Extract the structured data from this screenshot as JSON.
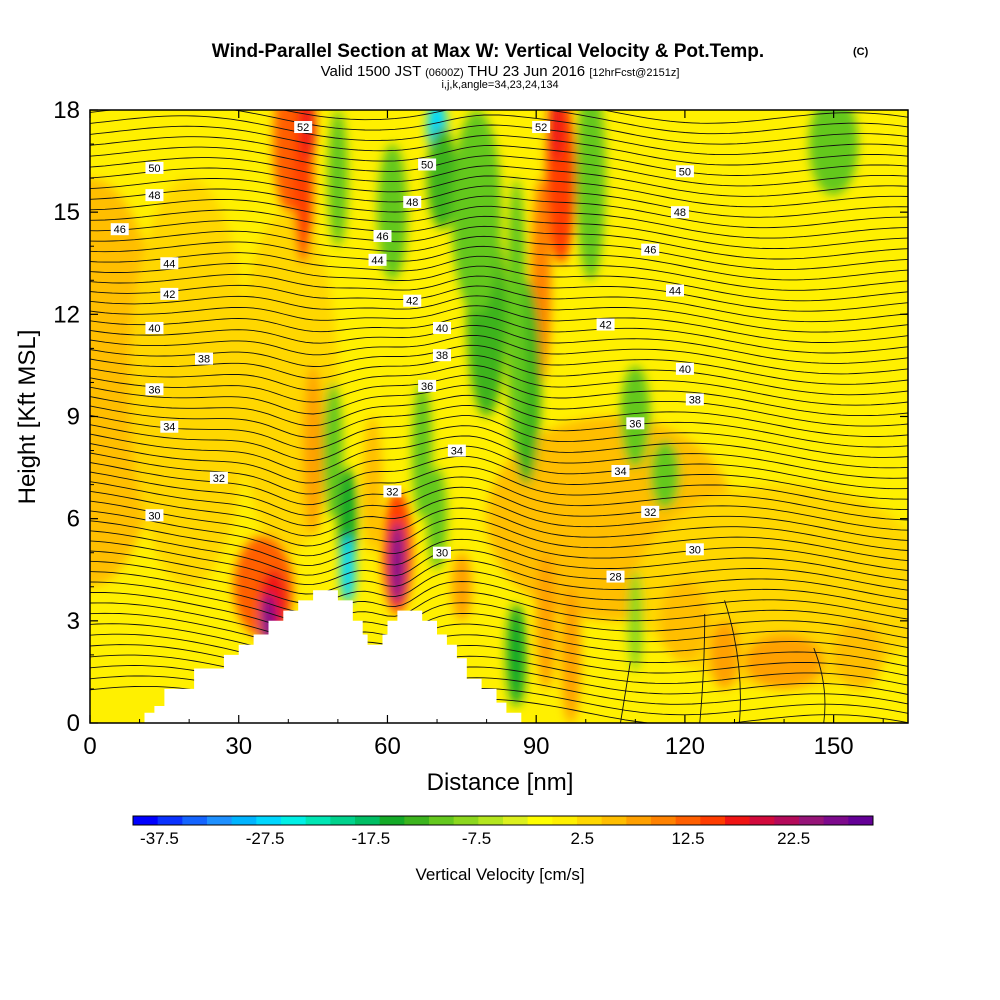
{
  "chart_data": {
    "type": "heatmap",
    "title_main": "Wind-Parallel Section at Max W: Vertical Velocity & Pot.Temp.",
    "title_mark": "(C)",
    "subtitle_a": "Valid 1500 JST",
    "subtitle_b": "(0600Z)",
    "subtitle_c": "THU 23 Jun 2016",
    "subtitle_d": "[12hrFcst@2151z]",
    "subtitle2": "i,j,k,angle=34,23,24,134",
    "xlabel": "Distance [nm]",
    "ylabel": "Height [Kft MSL]",
    "xlim": [
      0,
      165
    ],
    "ylim": [
      0,
      18
    ],
    "x_ticks": [
      0,
      30,
      60,
      90,
      120,
      150
    ],
    "y_ticks": [
      0,
      3,
      6,
      9,
      12,
      15,
      18
    ],
    "colorbar": {
      "label": "Vertical Velocity [cm/s]",
      "tick_labels": [
        "-37.5",
        "-27.5",
        "-17.5",
        "-7.5",
        "2.5",
        "12.5",
        "22.5"
      ],
      "min": -40,
      "max": 30,
      "step": 2.5,
      "colors": [
        "#0000ff",
        "#0a32ff",
        "#1464ff",
        "#1e90ff",
        "#00b4ff",
        "#00d7ff",
        "#00f0e6",
        "#00e6b4",
        "#00d28c",
        "#00be64",
        "#14aa28",
        "#3cb41e",
        "#64c81e",
        "#8cd71e",
        "#b4e61e",
        "#dcf01e",
        "#ffff00",
        "#fff000",
        "#ffd700",
        "#ffbe00",
        "#ffa000",
        "#ff8200",
        "#ff5f00",
        "#ff3c00",
        "#f01414",
        "#d20a3c",
        "#b40a5a",
        "#961478",
        "#7d0a8c",
        "#640096"
      ]
    },
    "isentropes_K": [
      28,
      30,
      32,
      34,
      36,
      38,
      40,
      42,
      44,
      46,
      48,
      50,
      52
    ],
    "contour_labels": [
      {
        "t": "52",
        "x": 43,
        "y": 17.5
      },
      {
        "t": "52",
        "x": 91,
        "y": 17.5
      },
      {
        "t": "50",
        "x": 13,
        "y": 16.3
      },
      {
        "t": "50",
        "x": 68,
        "y": 16.4
      },
      {
        "t": "50",
        "x": 120,
        "y": 16.2
      },
      {
        "t": "48",
        "x": 13,
        "y": 15.5
      },
      {
        "t": "48",
        "x": 65,
        "y": 15.3
      },
      {
        "t": "48",
        "x": 119,
        "y": 15.0
      },
      {
        "t": "46",
        "x": 6,
        "y": 14.5
      },
      {
        "t": "46",
        "x": 59,
        "y": 14.3
      },
      {
        "t": "46",
        "x": 113,
        "y": 13.9
      },
      {
        "t": "44",
        "x": 16,
        "y": 13.5
      },
      {
        "t": "44",
        "x": 58,
        "y": 13.6
      },
      {
        "t": "44",
        "x": 118,
        "y": 12.7
      },
      {
        "t": "42",
        "x": 16,
        "y": 12.6
      },
      {
        "t": "42",
        "x": 65,
        "y": 12.4
      },
      {
        "t": "42",
        "x": 104,
        "y": 11.7
      },
      {
        "t": "40",
        "x": 13,
        "y": 11.6
      },
      {
        "t": "40",
        "x": 71,
        "y": 11.6
      },
      {
        "t": "40",
        "x": 120,
        "y": 10.4
      },
      {
        "t": "38",
        "x": 23,
        "y": 10.7
      },
      {
        "t": "38",
        "x": 71,
        "y": 10.8
      },
      {
        "t": "38",
        "x": 122,
        "y": 9.5
      },
      {
        "t": "36",
        "x": 13,
        "y": 9.8
      },
      {
        "t": "36",
        "x": 68,
        "y": 9.9
      },
      {
        "t": "36",
        "x": 110,
        "y": 8.8
      },
      {
        "t": "34",
        "x": 16,
        "y": 8.7
      },
      {
        "t": "34",
        "x": 74,
        "y": 8.0
      },
      {
        "t": "34",
        "x": 107,
        "y": 7.4
      },
      {
        "t": "32",
        "x": 26,
        "y": 7.2
      },
      {
        "t": "32",
        "x": 61,
        "y": 6.8
      },
      {
        "t": "32",
        "x": 113,
        "y": 6.2
      },
      {
        "t": "30",
        "x": 13,
        "y": 6.1
      },
      {
        "t": "30",
        "x": 71,
        "y": 5.0
      },
      {
        "t": "30",
        "x": 122,
        "y": 5.1
      },
      {
        "t": "28",
        "x": 106,
        "y": 4.3
      }
    ],
    "updraft_cores": [
      {
        "x": 37,
        "y": 3.5,
        "w_cm_s": 30
      },
      {
        "x": 62,
        "y": 4.7,
        "w_cm_s": 30
      },
      {
        "x": 43,
        "y": 16.5,
        "w_cm_s": 17
      },
      {
        "x": 95,
        "y": 16,
        "w_cm_s": 17
      }
    ],
    "downdraft_cores": [
      {
        "x": 52,
        "y": 4.5,
        "w_cm_s": -27
      },
      {
        "x": 70,
        "y": 17.5,
        "w_cm_s": -27
      },
      {
        "x": 81,
        "y": 11.5,
        "w_cm_s": -12
      },
      {
        "x": 86,
        "y": 2,
        "w_cm_s": -15
      }
    ]
  }
}
